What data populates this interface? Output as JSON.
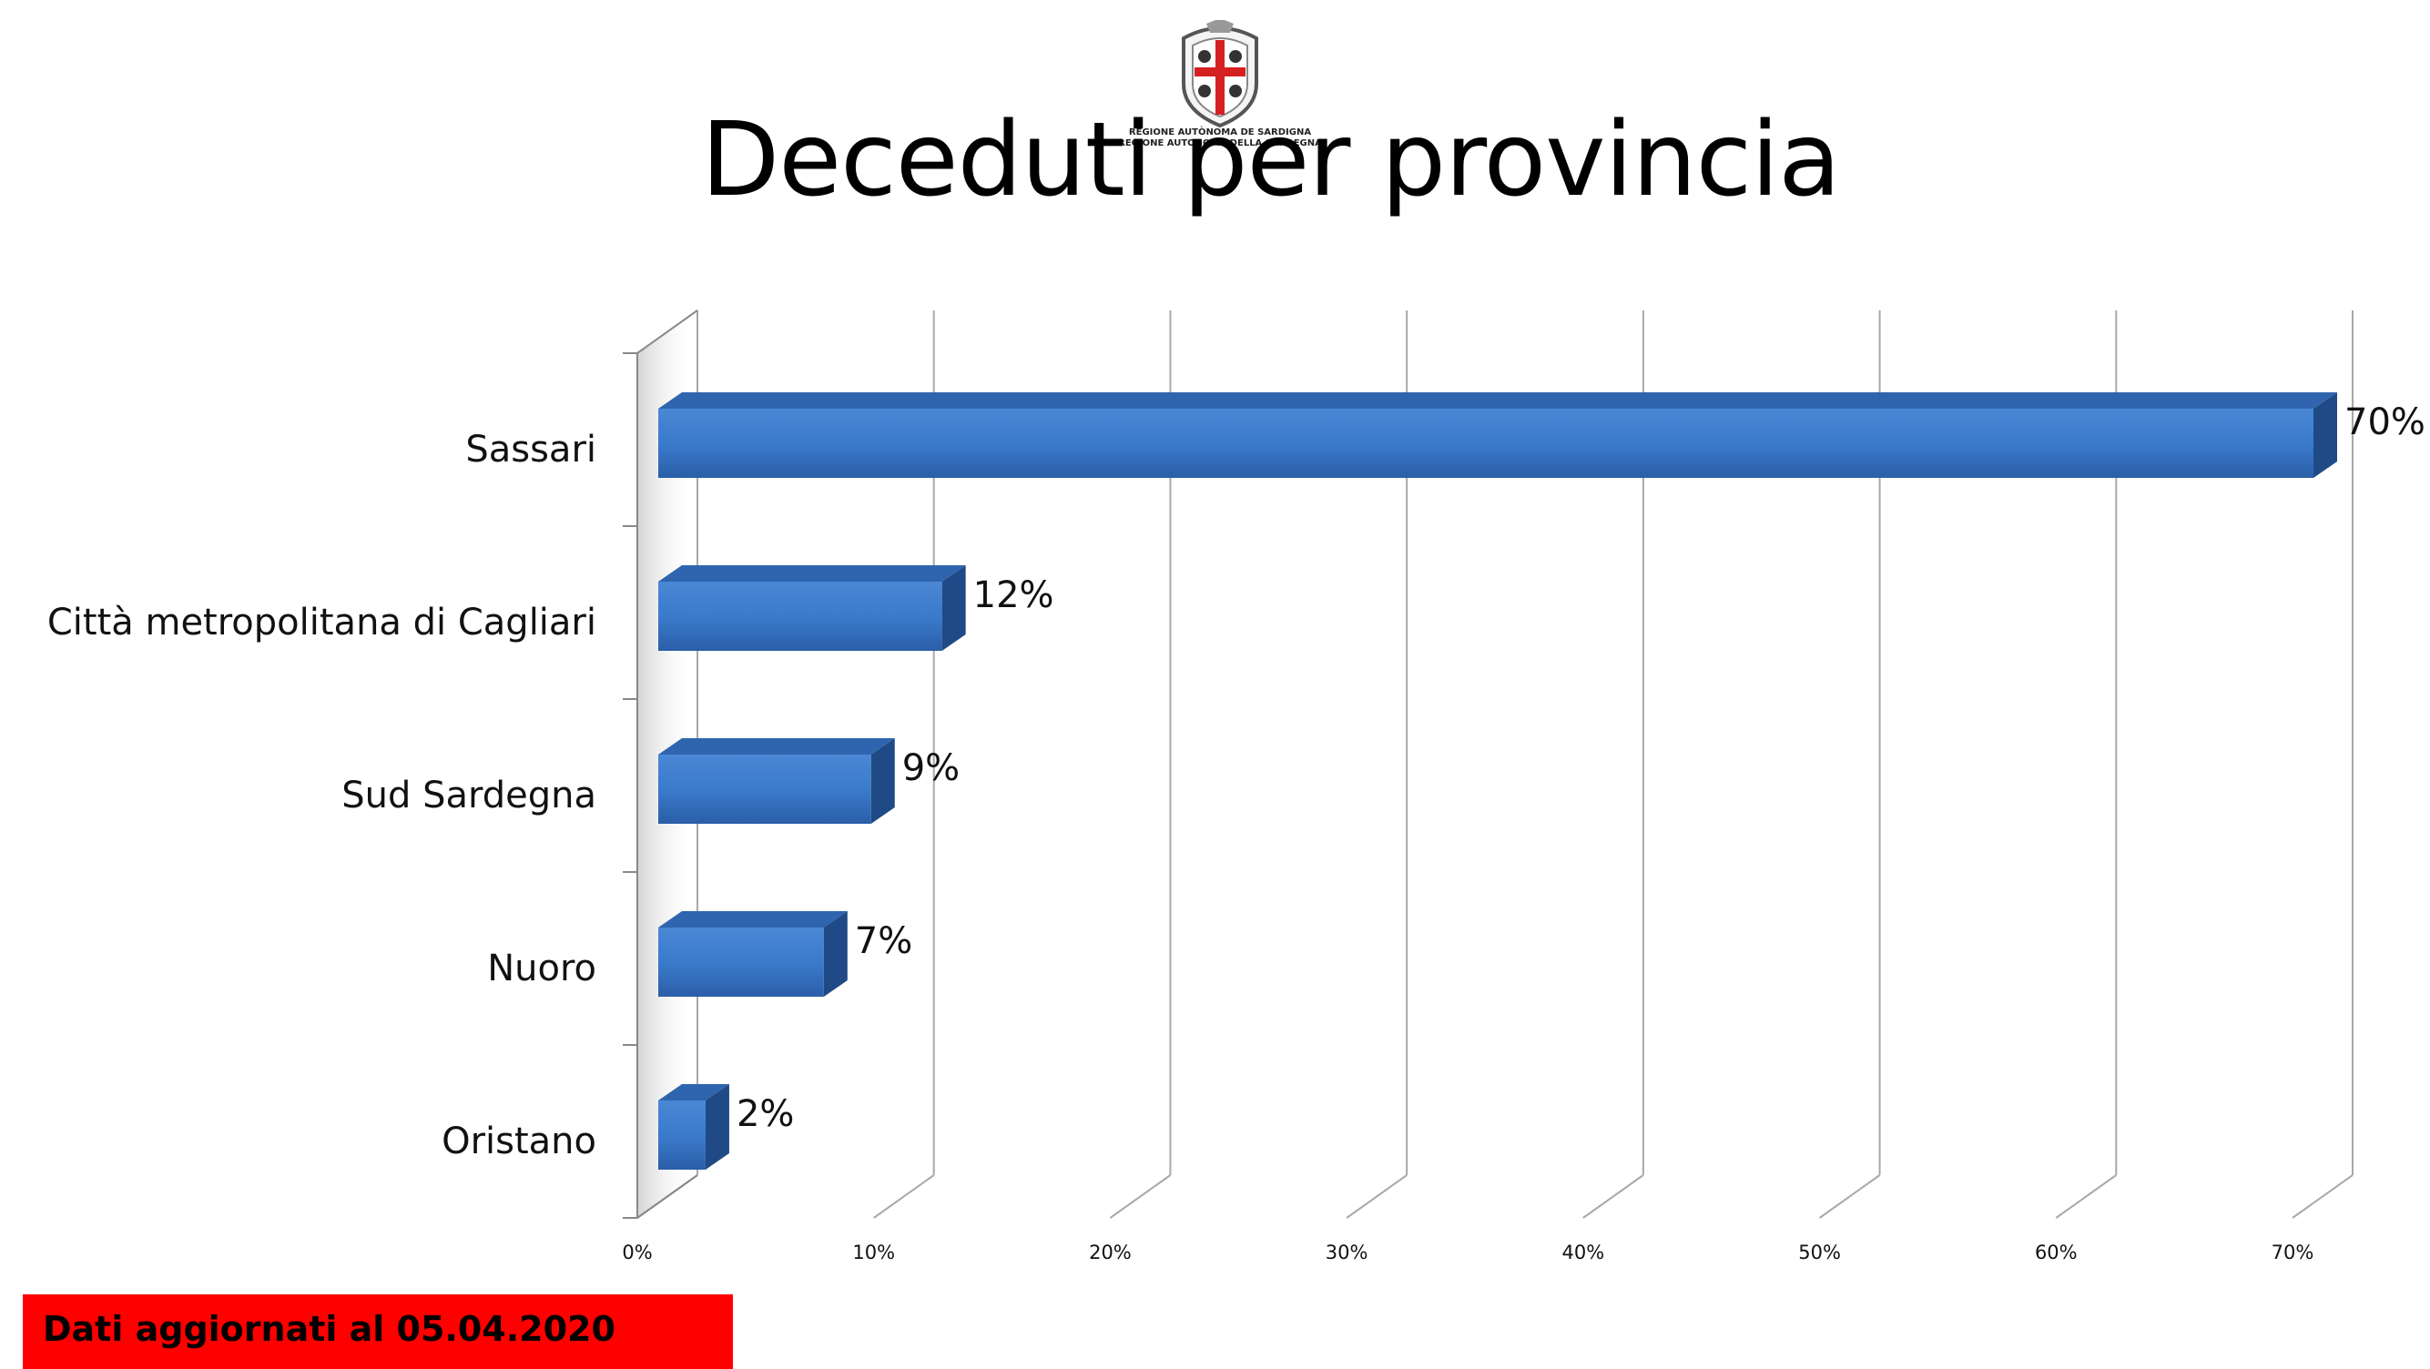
{
  "title": "Deceduti per provincia",
  "logo": {
    "line1": "REGIONE AUTÒNOMA DE SARDIGNA",
    "line2": "REGIONE AUTONOMA DELLA SARDEGNA"
  },
  "footer": {
    "updated_label": "Dati aggiornati al 05.04.2020",
    "badge_color": "#ff0000"
  },
  "chart_data": {
    "type": "bar",
    "orientation": "horizontal",
    "style": "3d",
    "categories": [
      "Sassari",
      "Città metropolitana di Cagliari",
      "Sud Sardegna",
      "Nuoro",
      "Oristano"
    ],
    "values": [
      70,
      12,
      9,
      7,
      2
    ],
    "value_labels": [
      "70%",
      "12%",
      "9%",
      "7%",
      "2%"
    ],
    "xticks": [
      "0%",
      "10%",
      "20%",
      "30%",
      "40%",
      "50%",
      "60%",
      "70%"
    ],
    "xlim": [
      0,
      70
    ],
    "grid": true,
    "legend": "none",
    "bar_color": "#3a78c9"
  }
}
